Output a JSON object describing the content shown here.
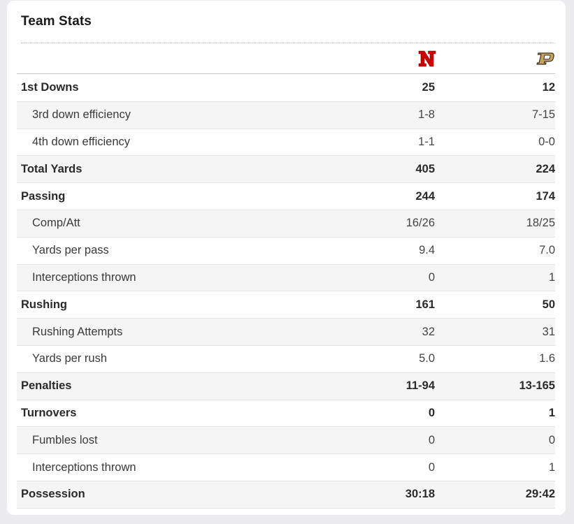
{
  "title": "Team Stats",
  "teams": {
    "home": {
      "logo_icon": "nebraska-n-icon",
      "color": "#d00000",
      "logo_text": "N"
    },
    "away": {
      "logo_icon": "purdue-p-icon",
      "color": "#c5a25e",
      "logo_text": "P"
    }
  },
  "rows": [
    {
      "label": "1st Downs",
      "home": "25",
      "away": "12",
      "bold": true
    },
    {
      "label": "3rd down efficiency",
      "home": "1-8",
      "away": "7-15",
      "bold": false
    },
    {
      "label": "4th down efficiency",
      "home": "1-1",
      "away": "0-0",
      "bold": false
    },
    {
      "label": "Total Yards",
      "home": "405",
      "away": "224",
      "bold": true
    },
    {
      "label": "Passing",
      "home": "244",
      "away": "174",
      "bold": true
    },
    {
      "label": "Comp/Att",
      "home": "16/26",
      "away": "18/25",
      "bold": false
    },
    {
      "label": "Yards per pass",
      "home": "9.4",
      "away": "7.0",
      "bold": false
    },
    {
      "label": "Interceptions thrown",
      "home": "0",
      "away": "1",
      "bold": false
    },
    {
      "label": "Rushing",
      "home": "161",
      "away": "50",
      "bold": true
    },
    {
      "label": "Rushing Attempts",
      "home": "32",
      "away": "31",
      "bold": false
    },
    {
      "label": "Yards per rush",
      "home": "5.0",
      "away": "1.6",
      "bold": false
    },
    {
      "label": "Penalties",
      "home": "11-94",
      "away": "13-165",
      "bold": true
    },
    {
      "label": "Turnovers",
      "home": "0",
      "away": "1",
      "bold": true
    },
    {
      "label": "Fumbles lost",
      "home": "0",
      "away": "0",
      "bold": false
    },
    {
      "label": "Interceptions thrown",
      "home": "0",
      "away": "1",
      "bold": false
    },
    {
      "label": "Possession",
      "home": "30:18",
      "away": "29:42",
      "bold": true
    }
  ]
}
